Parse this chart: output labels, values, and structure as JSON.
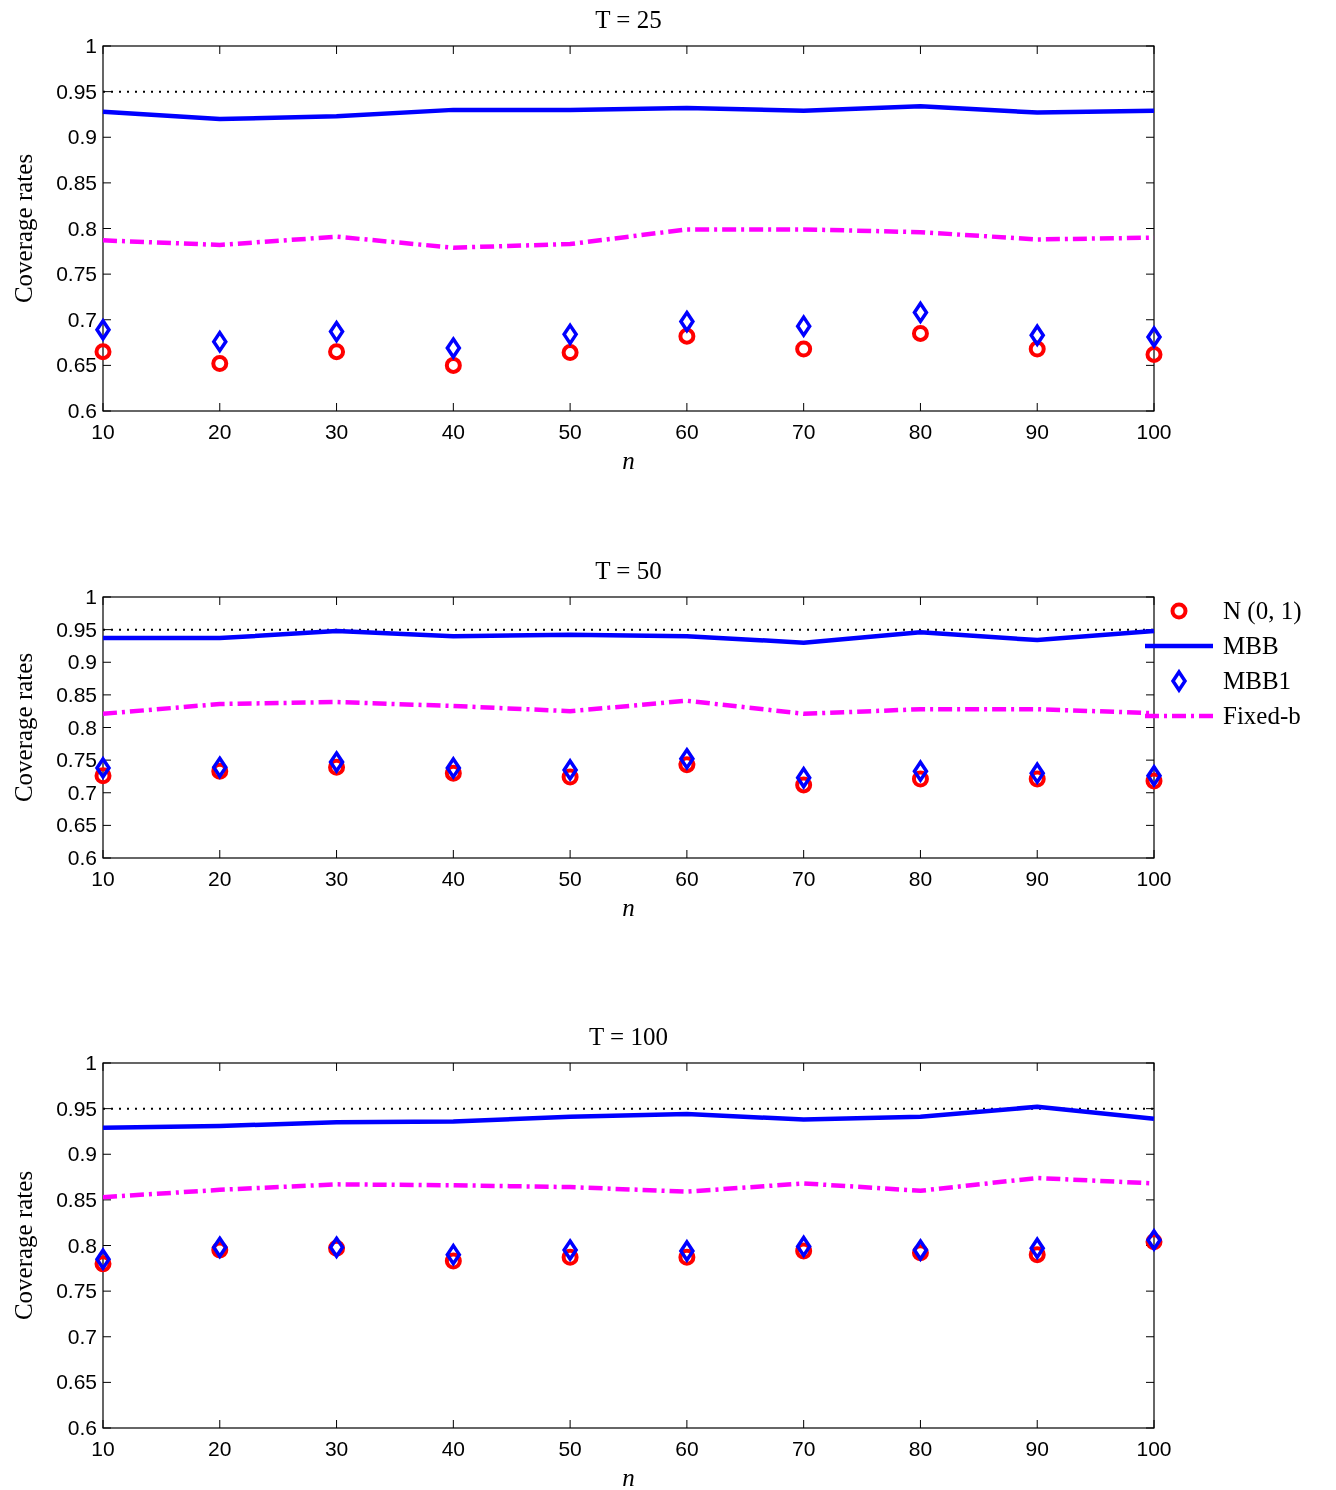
{
  "chart_data": [
    {
      "type": "scatter",
      "title": "T = 25",
      "xlabel": "n",
      "ylabel": "Coverage rates",
      "x": [
        10,
        20,
        30,
        40,
        50,
        60,
        70,
        80,
        90,
        100
      ],
      "xlim": [
        10,
        100
      ],
      "xticks": [
        10,
        20,
        30,
        40,
        50,
        60,
        70,
        80,
        90,
        100
      ],
      "ylim": [
        0.6,
        1
      ],
      "yticks": [
        0.6,
        0.65,
        0.7,
        0.75,
        0.8,
        0.85,
        0.9,
        0.95,
        1
      ],
      "legend": false,
      "ref_lines": [
        {
          "axis": "y",
          "value": 0.95,
          "color": "#000000",
          "line_style": "dotted"
        }
      ],
      "series": [
        {
          "color": "#ff0000",
          "marker": "circle",
          "values": [
            0.665,
            0.652,
            0.665,
            0.65,
            0.664,
            0.682,
            0.668,
            0.685,
            0.668,
            0.662
          ]
        },
        {
          "type": "line",
          "color": "#0000ff",
          "line_style": "solid",
          "values": [
            0.928,
            0.92,
            0.923,
            0.93,
            0.93,
            0.932,
            0.929,
            0.934,
            0.927,
            0.929
          ]
        },
        {
          "color": "#0000ff",
          "marker": "diamond",
          "values": [
            0.689,
            0.676,
            0.687,
            0.669,
            0.684,
            0.698,
            0.693,
            0.708,
            0.683,
            0.681
          ]
        },
        {
          "type": "line",
          "color": "#ff00ff",
          "line_style": "dashed",
          "values": [
            0.787,
            0.782,
            0.791,
            0.779,
            0.783,
            0.799,
            0.799,
            0.796,
            0.788,
            0.79
          ]
        }
      ]
    },
    {
      "type": "scatter",
      "title": "T = 50",
      "xlabel": "n",
      "ylabel": "Coverage rates",
      "x": [
        10,
        20,
        30,
        40,
        50,
        60,
        70,
        80,
        90,
        100
      ],
      "xlim": [
        10,
        100
      ],
      "xticks": [
        10,
        20,
        30,
        40,
        50,
        60,
        70,
        80,
        90,
        100
      ],
      "ylim": [
        0.6,
        1
      ],
      "yticks": [
        0.6,
        0.65,
        0.7,
        0.75,
        0.8,
        0.85,
        0.9,
        0.95,
        1
      ],
      "legend": "top right",
      "ref_lines": [
        {
          "axis": "y",
          "value": 0.95,
          "color": "#000000",
          "line_style": "dotted"
        }
      ],
      "series": [
        {
          "name": "N (0, 1)",
          "color": "#ff0000",
          "marker": "circle",
          "values": [
            0.726,
            0.733,
            0.739,
            0.73,
            0.724,
            0.743,
            0.712,
            0.721,
            0.721,
            0.718
          ]
        },
        {
          "type": "line",
          "name": "MBB",
          "color": "#0000ff",
          "line_style": "solid",
          "values": [
            0.937,
            0.937,
            0.948,
            0.94,
            0.942,
            0.94,
            0.93,
            0.946,
            0.934,
            0.948
          ]
        },
        {
          "name": "MBB1",
          "color": "#0000ff",
          "marker": "diamond",
          "values": [
            0.738,
            0.739,
            0.747,
            0.738,
            0.735,
            0.752,
            0.723,
            0.733,
            0.73,
            0.726
          ]
        },
        {
          "type": "line",
          "name": "Fixed-b",
          "color": "#ff00ff",
          "line_style": "dashed",
          "values": [
            0.821,
            0.836,
            0.839,
            0.833,
            0.825,
            0.841,
            0.821,
            0.828,
            0.828,
            0.822
          ]
        }
      ]
    },
    {
      "type": "scatter",
      "title": "T = 100",
      "xlabel": "n",
      "ylabel": "Coverage rates",
      "x": [
        10,
        20,
        30,
        40,
        50,
        60,
        70,
        80,
        90,
        100
      ],
      "xlim": [
        10,
        100
      ],
      "xticks": [
        10,
        20,
        30,
        40,
        50,
        60,
        70,
        80,
        90,
        100
      ],
      "ylim": [
        0.6,
        1
      ],
      "yticks": [
        0.6,
        0.65,
        0.7,
        0.75,
        0.8,
        0.85,
        0.9,
        0.95,
        1
      ],
      "legend": false,
      "ref_lines": [
        {
          "axis": "y",
          "value": 0.95,
          "color": "#000000",
          "line_style": "dotted"
        }
      ],
      "series": [
        {
          "color": "#ff0000",
          "marker": "circle",
          "values": [
            0.78,
            0.795,
            0.797,
            0.783,
            0.787,
            0.787,
            0.794,
            0.792,
            0.79,
            0.804
          ]
        },
        {
          "type": "line",
          "color": "#0000ff",
          "line_style": "solid",
          "values": [
            0.929,
            0.931,
            0.935,
            0.936,
            0.941,
            0.944,
            0.938,
            0.941,
            0.952,
            0.939
          ]
        },
        {
          "color": "#0000ff",
          "marker": "diamond",
          "values": [
            0.785,
            0.798,
            0.798,
            0.79,
            0.795,
            0.794,
            0.799,
            0.795,
            0.797,
            0.806
          ]
        },
        {
          "type": "line",
          "color": "#ff00ff",
          "line_style": "dashed",
          "values": [
            0.853,
            0.861,
            0.867,
            0.866,
            0.864,
            0.859,
            0.868,
            0.86,
            0.874,
            0.868
          ]
        }
      ]
    }
  ]
}
